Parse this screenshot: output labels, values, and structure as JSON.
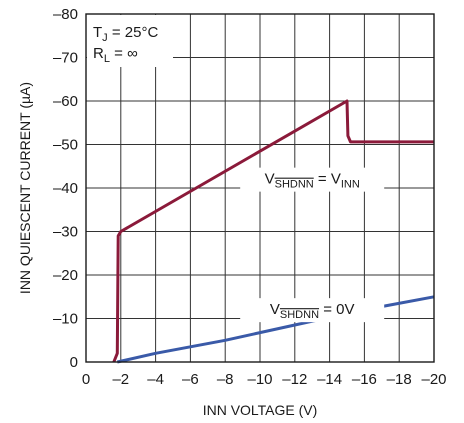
{
  "chart_data": {
    "type": "line",
    "xlabel": "INN VOLTAGE (V)",
    "ylabel": "INN QUIESCENT CURRENT (µA)",
    "xlim": [
      0,
      -20
    ],
    "ylim": [
      0,
      -80
    ],
    "x_ticks": [
      "0",
      "–2",
      "–4",
      "–6",
      "–8",
      "–10",
      "–12",
      "–14",
      "–16",
      "–18",
      "–20"
    ],
    "y_ticks": [
      "0",
      "–10",
      "–20",
      "–30",
      "–40",
      "–50",
      "–60",
      "–70",
      "–80"
    ],
    "grid": true,
    "conditions": {
      "tj": {
        "main": "T",
        "sub": "J",
        "rest": " = 25°C"
      },
      "rl": {
        "main": "R",
        "sub": "L",
        "rest": " = ∞"
      }
    },
    "series": [
      {
        "label": {
          "main": "V",
          "sub": "SHDNN",
          "mid": " = V",
          "sub2": "INN",
          "rest": ""
        },
        "label_at": {
          "x": -13,
          "y": -41
        },
        "color": "#8b1a3a",
        "x": [
          -1.6,
          -1.8,
          -1.85,
          -2,
          -15,
          -15.05,
          -15.2,
          -20
        ],
        "y": [
          0,
          -2,
          -29,
          -30,
          -60,
          -52,
          -50.6,
          -50.6
        ]
      },
      {
        "label": {
          "main": "V",
          "sub": "SHDNN",
          "mid": " = 0V",
          "sub2": "",
          "rest": ""
        },
        "label_at": {
          "x": -13,
          "y": -11
        },
        "color": "#3a5aa8",
        "x": [
          -1.8,
          -4,
          -8,
          -12,
          -16,
          -20
        ],
        "y": [
          0,
          -2,
          -5,
          -8.5,
          -12,
          -15
        ]
      }
    ]
  }
}
